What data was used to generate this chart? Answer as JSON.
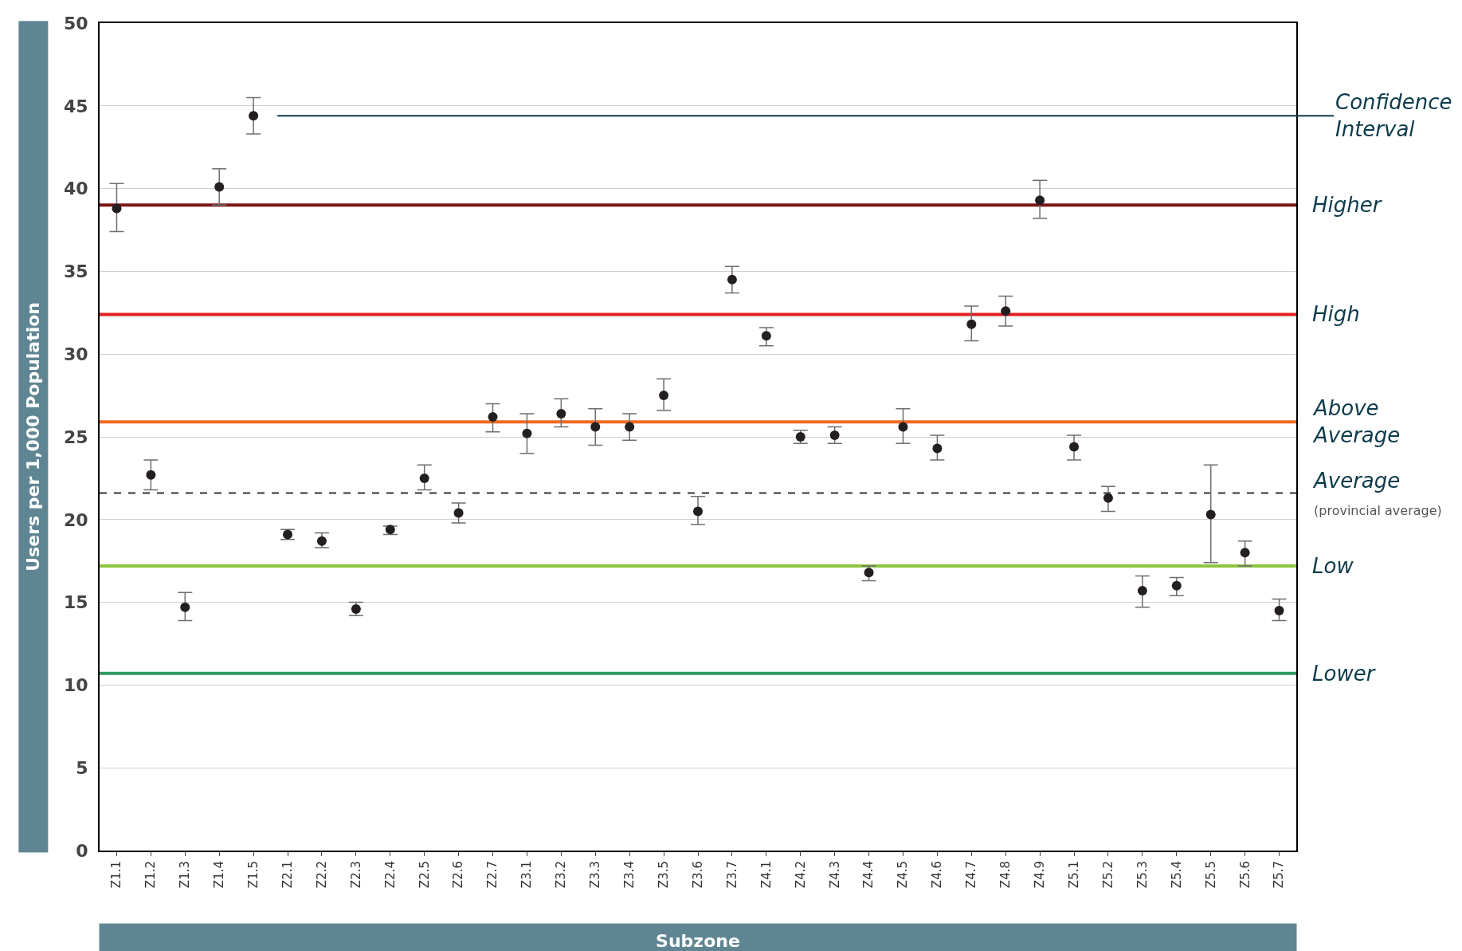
{
  "chart_data": {
    "type": "scatter",
    "ylabel": "Users per 1,000 Population",
    "xlabel": "Subzone",
    "categories": [
      "Z1.1",
      "Z1.2",
      "Z1.3",
      "Z1.4",
      "Z1.5",
      "Z2.1",
      "Z2.2",
      "Z2.3",
      "Z2.4",
      "Z2.5",
      "Z2.6",
      "Z2.7",
      "Z3.1",
      "Z3.2",
      "Z3.3",
      "Z3.4",
      "Z3.5",
      "Z3.6",
      "Z3.7",
      "Z4.1",
      "Z4.2",
      "Z4.3",
      "Z4.4",
      "Z4.5",
      "Z4.6",
      "Z4.7",
      "Z4.8",
      "Z4.9",
      "Z5.1",
      "Z5.2",
      "Z5.3",
      "Z5.4",
      "Z5.5",
      "Z5.6",
      "Z5.7"
    ],
    "series": [
      {
        "color": "#231f20",
        "values": [
          38.8,
          22.7,
          14.7,
          40.1,
          44.4,
          19.1,
          18.7,
          14.6,
          19.4,
          22.5,
          20.4,
          26.2,
          25.2,
          26.4,
          25.6,
          25.6,
          27.5,
          20.5,
          34.5,
          31.1,
          25.0,
          25.1,
          16.8,
          25.6,
          24.3,
          31.8,
          32.6,
          39.3,
          24.4,
          21.3,
          15.7,
          16.0,
          20.3,
          18.0,
          14.5
        ],
        "errors": [
          [
            37.4,
            40.3
          ],
          [
            21.8,
            23.6
          ],
          [
            13.9,
            15.6
          ],
          [
            39.0,
            41.2
          ],
          [
            43.3,
            45.5
          ],
          [
            18.8,
            19.4
          ],
          [
            18.3,
            19.2
          ],
          [
            14.2,
            15.0
          ],
          [
            19.1,
            19.6
          ],
          [
            21.8,
            23.3
          ],
          [
            19.8,
            21.0
          ],
          [
            25.3,
            27.0
          ],
          [
            24.0,
            26.4
          ],
          [
            25.6,
            27.3
          ],
          [
            24.5,
            26.7
          ],
          [
            24.8,
            26.4
          ],
          [
            26.6,
            28.5
          ],
          [
            19.7,
            21.4
          ],
          [
            33.7,
            35.3
          ],
          [
            30.5,
            31.6
          ],
          [
            24.6,
            25.4
          ],
          [
            24.6,
            25.6
          ],
          [
            16.3,
            17.2
          ],
          [
            24.6,
            26.7
          ],
          [
            23.6,
            25.1
          ],
          [
            30.8,
            32.9
          ],
          [
            31.7,
            33.5
          ],
          [
            38.2,
            40.5
          ],
          [
            23.6,
            25.1
          ],
          [
            20.5,
            22.0
          ],
          [
            14.7,
            16.6
          ],
          [
            15.4,
            16.5
          ],
          [
            17.4,
            23.3
          ],
          [
            17.2,
            18.7
          ],
          [
            13.9,
            15.2
          ]
        ]
      }
    ],
    "marker": "circle",
    "ylim": [
      0,
      50
    ],
    "yticks": [
      0,
      5,
      10,
      15,
      20,
      25,
      30,
      35,
      40,
      45,
      50
    ],
    "grid": "y",
    "ref_lines": [
      {
        "axis": "y",
        "value": 39.0,
        "label": "Higher",
        "color": "#7b1416",
        "line_style": "solid"
      },
      {
        "axis": "y",
        "value": 32.4,
        "label": "High",
        "color": "#e31e24",
        "line_style": "solid"
      },
      {
        "axis": "y",
        "value": 25.9,
        "label": "Above\nAverage",
        "color": "#f26a21",
        "line_style": "solid"
      },
      {
        "axis": "y",
        "value": 21.6,
        "label": "Average\n(provincial average)",
        "color": "#333333",
        "line_style": "dashed"
      },
      {
        "axis": "y",
        "value": 17.2,
        "label": "Low",
        "color": "#8dc63f",
        "line_style": "solid"
      },
      {
        "axis": "y",
        "value": 10.7,
        "label": "Lower",
        "color": "#2e9b5f",
        "line_style": "solid"
      }
    ],
    "annotations": [
      {
        "text": "Confidence\nInterval",
        "x": "Z1.5",
        "y": 44.4
      }
    ]
  }
}
